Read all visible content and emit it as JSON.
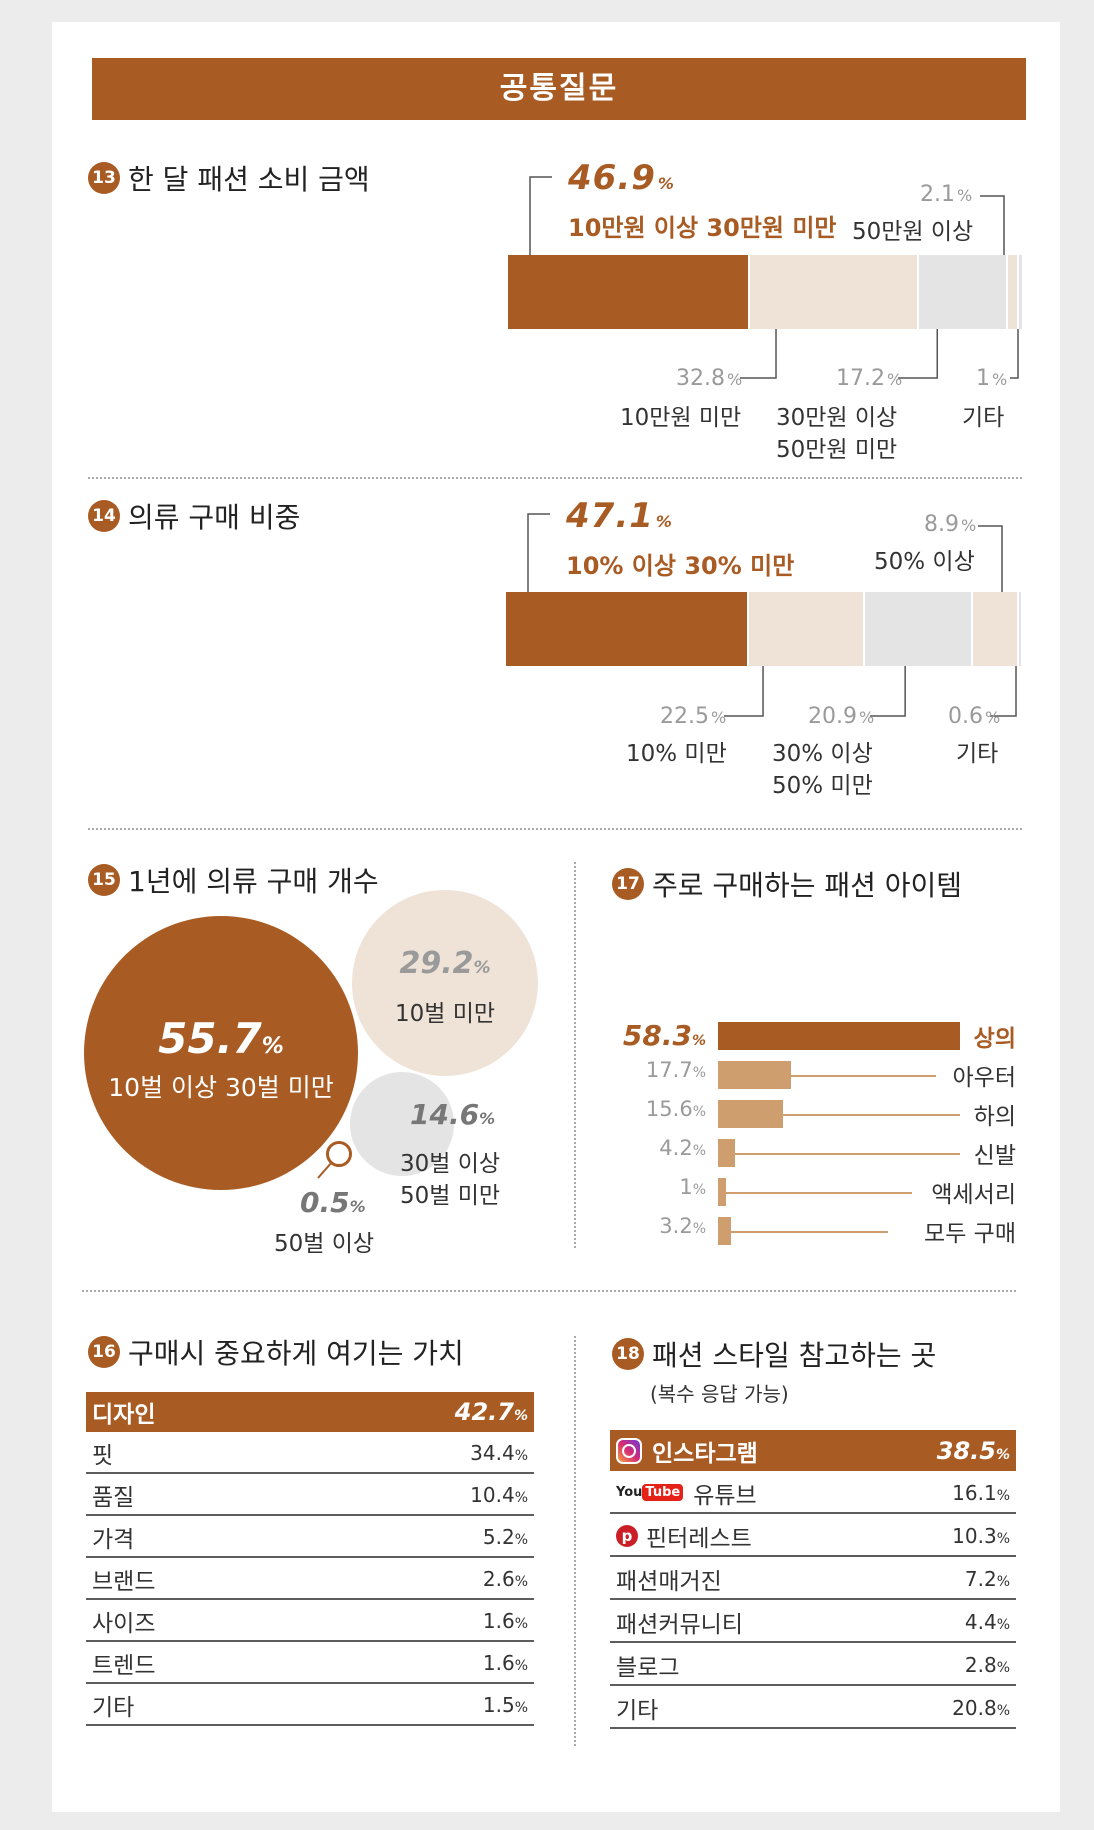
{
  "banner": "공통질문",
  "colors": {
    "brown": "#a85c24",
    "beige": "#efe3d8",
    "lightgray": "#e4e4e4",
    "tan": "#cf9e6f"
  },
  "q13": {
    "num": "13",
    "title": "한 달 패션 소비 금액",
    "highlight_value": "46.9",
    "highlight_label": "10만원 이상 30만원 미만",
    "chart_data": {
      "type": "bar",
      "title": "한 달 패션 소비 금액",
      "categories": [
        "10만원 이상 30만원 미만",
        "10만원 미만",
        "30만원 이상 50만원 미만",
        "50만원 이상",
        "기타"
      ],
      "values": [
        46.9,
        32.8,
        17.2,
        2.1,
        1.0
      ]
    },
    "labels": {
      "a_val": "32.8",
      "a_lbl": "10만원 미만",
      "b_val": "17.2",
      "b_lbl1": "30만원 이상",
      "b_lbl2": "50만원 미만",
      "c_val": "1",
      "c_lbl": "기타",
      "d_val": "2.1",
      "d_lbl": "50만원 이상"
    }
  },
  "q14": {
    "num": "14",
    "title": "의류 구매 비중",
    "highlight_value": "47.1",
    "highlight_label": "10% 이상 30% 미만",
    "chart_data": {
      "type": "bar",
      "title": "의류 구매 비중",
      "categories": [
        "10% 이상 30% 미만",
        "10% 미만",
        "30% 이상 50% 미만",
        "50% 이상",
        "기타"
      ],
      "values": [
        47.1,
        22.5,
        20.9,
        8.9,
        0.6
      ]
    },
    "labels": {
      "a_val": "22.5",
      "a_lbl": "10% 미만",
      "b_val": "20.9",
      "b_lbl1": "30% 이상",
      "b_lbl2": "50% 미만",
      "c_val": "0.6",
      "c_lbl": "기타",
      "d_val": "8.9",
      "d_lbl": "50% 이상"
    }
  },
  "q15": {
    "num": "15",
    "title": "1년에 의류 구매 개수",
    "chart_data": {
      "type": "pie",
      "title": "1년에 의류 구매 개수",
      "categories": [
        "10벌 이상 30벌 미만",
        "10벌 미만",
        "30벌 이상 50벌 미만",
        "50벌 이상"
      ],
      "values": [
        55.7,
        29.2,
        14.6,
        0.5
      ]
    },
    "big": {
      "val": "55.7",
      "lbl": "10벌 이상 30벌 미만"
    },
    "mid": {
      "val": "29.2",
      "lbl": "10벌 미만"
    },
    "small": {
      "val": "14.6",
      "lbl1": "30벌 이상",
      "lbl2": "50벌 미만"
    },
    "tiny": {
      "val": "0.5",
      "lbl": "50벌 이상"
    }
  },
  "q17": {
    "num": "17",
    "title": "주로 구매하는 패션 아이템",
    "chart_data": {
      "type": "bar",
      "title": "주로 구매하는 패션 아이템",
      "categories": [
        "상의",
        "아우터",
        "하의",
        "신발",
        "액세서리",
        "모두 구매"
      ],
      "values": [
        58.3,
        17.7,
        15.6,
        4.2,
        1,
        3.2
      ]
    },
    "items": [
      {
        "val": "58.3",
        "lbl": "상의"
      },
      {
        "val": "17.7",
        "lbl": "아우터"
      },
      {
        "val": "15.6",
        "lbl": "하의"
      },
      {
        "val": "4.2",
        "lbl": "신발"
      },
      {
        "val": "1",
        "lbl": "액세서리"
      },
      {
        "val": "3.2",
        "lbl": "모두 구매"
      }
    ]
  },
  "q16": {
    "num": "16",
    "title": "구매시 중요하게 여기는 가치",
    "chart_data": {
      "type": "table",
      "title": "구매시 중요하게 여기는 가치",
      "categories": [
        "디자인",
        "핏",
        "품질",
        "가격",
        "브랜드",
        "사이즈",
        "트렌드",
        "기타"
      ],
      "values": [
        42.7,
        34.4,
        10.4,
        5.2,
        2.6,
        1.6,
        1.6,
        1.5
      ]
    },
    "rows": [
      {
        "lbl": "디자인",
        "val": "42.7"
      },
      {
        "lbl": "핏",
        "val": "34.4"
      },
      {
        "lbl": "품질",
        "val": "10.4"
      },
      {
        "lbl": "가격",
        "val": "5.2"
      },
      {
        "lbl": "브랜드",
        "val": "2.6"
      },
      {
        "lbl": "사이즈",
        "val": "1.6"
      },
      {
        "lbl": "트렌드",
        "val": "1.6"
      },
      {
        "lbl": "기타",
        "val": "1.5"
      }
    ]
  },
  "q18": {
    "num": "18",
    "title": "패션 스타일 참고하는 곳",
    "subtitle": "(복수 응답 가능)",
    "chart_data": {
      "type": "table",
      "title": "패션 스타일 참고하는 곳",
      "categories": [
        "인스타그램",
        "유튜브",
        "핀터레스트",
        "패션매거진",
        "패션커뮤니티",
        "블로그",
        "기타"
      ],
      "values": [
        38.5,
        16.1,
        10.3,
        7.2,
        4.4,
        2.8,
        20.8
      ]
    },
    "youtube_logo": {
      "you": "You",
      "tube": "Tube"
    },
    "rows": [
      {
        "lbl": "인스타그램",
        "val": "38.5"
      },
      {
        "lbl": "유튜브",
        "val": "16.1"
      },
      {
        "lbl": "핀터레스트",
        "val": "10.3"
      },
      {
        "lbl": "패션매거진",
        "val": "7.2"
      },
      {
        "lbl": "패션커뮤니티",
        "val": "4.4"
      },
      {
        "lbl": "블로그",
        "val": "2.8"
      },
      {
        "lbl": "기타",
        "val": "20.8"
      }
    ]
  },
  "pct_sign": "%"
}
